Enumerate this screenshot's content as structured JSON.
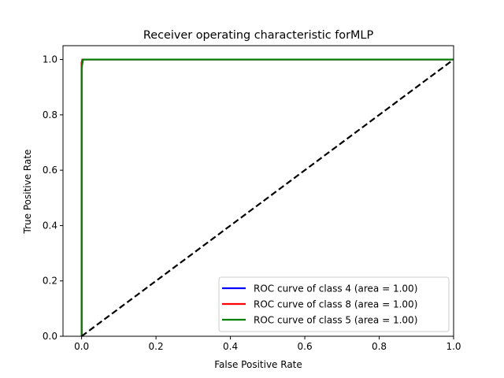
{
  "chart_data": {
    "type": "line",
    "title": "Receiver operating characteristic forMLP",
    "xlabel": "False Positive Rate",
    "ylabel": "True Positive Rate",
    "xlim": [
      -0.05,
      1.0
    ],
    "ylim": [
      0.0,
      1.05
    ],
    "xticks": [
      0.0,
      0.2,
      0.4,
      0.6,
      0.8,
      1.0
    ],
    "yticks": [
      0.0,
      0.2,
      0.4,
      0.6,
      0.8,
      1.0
    ],
    "xtick_labels": [
      "0.0",
      "0.2",
      "0.4",
      "0.6",
      "0.8",
      "1.0"
    ],
    "ytick_labels": [
      "0.0",
      "0.2",
      "0.4",
      "0.6",
      "0.8",
      "1.0"
    ],
    "grid": false,
    "legend_position": "lower-right",
    "series": [
      {
        "name": "ROC curve of class 4 (area = 1.00)",
        "color": "#0000ff",
        "x": [
          0.0,
          0.0,
          0.002,
          1.0
        ],
        "y": [
          0.0,
          0.98,
          1.0,
          1.0
        ]
      },
      {
        "name": "ROC curve of class 8 (area = 1.00)",
        "color": "#ff0000",
        "x": [
          0.0,
          0.0,
          0.003,
          1.0
        ],
        "y": [
          0.0,
          0.99,
          1.0,
          1.0
        ]
      },
      {
        "name": "ROC curve of class 5 (area = 1.00)",
        "color": "#008000",
        "x": [
          0.0,
          0.0,
          0.004,
          1.0
        ],
        "y": [
          0.0,
          0.97,
          1.0,
          1.0
        ]
      }
    ],
    "reference_line": {
      "color": "#000000",
      "style": "dashed",
      "x": [
        0.0,
        1.0
      ],
      "y": [
        0.0,
        1.0
      ]
    }
  }
}
